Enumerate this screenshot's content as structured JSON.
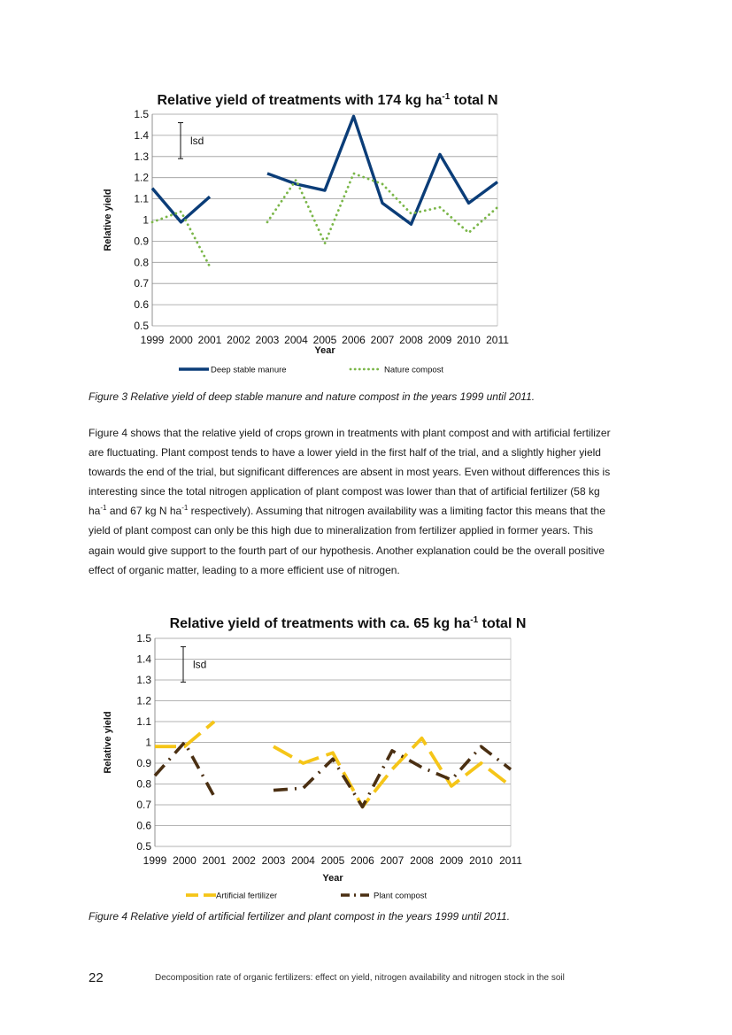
{
  "charts": [
    {
      "title_main": "Relative yield of treatments with  174 kg ha",
      "title_sup": "-1",
      "title_end": " total  N",
      "ylabel": "Relative yield",
      "xlabel": "Year",
      "lsd_label": "lsd",
      "y_ticks": [
        "0.5",
        "0.6",
        "0.7",
        "0.8",
        "0.9",
        "1",
        "1.1",
        "1.2",
        "1.3",
        "1.4",
        "1.5"
      ],
      "x_ticks": [
        "1999",
        "2000",
        "2001",
        "2002",
        "2003",
        "2004",
        "2005",
        "2006",
        "2007",
        "2008",
        "2009",
        "2010",
        "2011"
      ],
      "legend": [
        "Deep stable manure",
        "Nature compost"
      ]
    },
    {
      "title_main": "Relative yield of treatments with  ca. 65 kg ha",
      "title_sup": "-1",
      "title_end": " total  N",
      "ylabel": "Relative yield",
      "xlabel": "Year",
      "lsd_label": "lsd",
      "y_ticks": [
        "0.5",
        "0.6",
        "0.7",
        "0.8",
        "0.9",
        "1",
        "1.1",
        "1.2",
        "1.3",
        "1.4",
        "1.5"
      ],
      "x_ticks": [
        "1999",
        "2000",
        "2001",
        "2002",
        "2003",
        "2004",
        "2005",
        "2006",
        "2007",
        "2008",
        "2009",
        "2010",
        "2011"
      ],
      "legend": [
        "Artificial fertilizer",
        "Plant compost"
      ]
    }
  ],
  "chart_data": [
    {
      "type": "line",
      "title": "Relative yield of treatments with 174 kg ha-1 total N",
      "xlabel": "Year",
      "ylabel": "Relative yield",
      "x": [
        1999,
        2000,
        2001,
        2002,
        2003,
        2004,
        2005,
        2006,
        2007,
        2008,
        2009,
        2010,
        2011
      ],
      "ylim": [
        0.5,
        1.5
      ],
      "grid": true,
      "legend_position": "bottom",
      "lsd": {
        "low": 1.29,
        "high": 1.46
      },
      "series": [
        {
          "name": "Deep stable manure",
          "color": "#0b3d78",
          "style": "solid",
          "values": [
            1.15,
            0.99,
            1.11,
            null,
            1.22,
            1.17,
            1.14,
            1.49,
            1.08,
            0.98,
            1.31,
            1.08,
            1.18
          ]
        },
        {
          "name": "Nature compost",
          "color": "#7ab648",
          "style": "dotted",
          "values": [
            0.99,
            1.04,
            0.78,
            null,
            0.99,
            1.19,
            0.89,
            1.22,
            1.17,
            1.03,
            1.06,
            0.94,
            1.06
          ]
        }
      ]
    },
    {
      "type": "line",
      "title": "Relative yield of treatments with ca. 65 kg ha-1 total N",
      "xlabel": "Year",
      "ylabel": "Relative yield",
      "x": [
        1999,
        2000,
        2001,
        2002,
        2003,
        2004,
        2005,
        2006,
        2007,
        2008,
        2009,
        2010,
        2011
      ],
      "ylim": [
        0.5,
        1.5
      ],
      "grid": true,
      "legend_position": "bottom",
      "lsd": {
        "low": 1.29,
        "high": 1.46
      },
      "series": [
        {
          "name": "Artificial fertilizer",
          "color": "#f5c518",
          "style": "dashed",
          "values": [
            0.98,
            0.98,
            1.1,
            null,
            0.98,
            0.9,
            0.95,
            0.69,
            0.87,
            1.02,
            0.79,
            0.9,
            0.79
          ]
        },
        {
          "name": "Plant compost",
          "color": "#4a2f12",
          "style": "dash-dot",
          "values": [
            0.84,
            1.0,
            0.74,
            null,
            0.77,
            0.78,
            0.92,
            0.69,
            0.96,
            0.88,
            0.82,
            0.98,
            0.87
          ]
        }
      ]
    }
  ],
  "captions": [
    "Figure 3 Relative yield of deep stable manure and nature compost in the years 1999 until 2011.",
    "Figure 4 Relative yield of artificial fertilizer and plant compost in the years 1999 until 2011."
  ],
  "body": {
    "p1": "Figure 4 shows that the relative yield of crops grown in treatments with plant compost and with artificial fertilizer are fluctuating. Plant compost tends to have a lower yield in the first half of the trial, and a slightly higher yield towards the end of the trial, but significant differences are absent in most years. Even without differences this is  interesting since the total nitrogen application of plant compost was lower than that of artificial fertilizer (58 kg ha",
    "sup1": "-1",
    "p2": " and 67 kg N ha",
    "sup2": "-1",
    "p3": " respectively). Assuming that nitrogen availability was a limiting factor this means that the yield of plant compost can only be this high due to mineralization from fertilizer applied in former years. This again would give support to the fourth part of our hypothesis. Another explanation could be the overall positive effect of organic matter, leading to a more efficient use of nitrogen."
  },
  "footer": {
    "page_number": "22",
    "running_title": "Decomposition rate of organic fertilizers: effect on yield, nitrogen availability and nitrogen stock in the soil"
  }
}
